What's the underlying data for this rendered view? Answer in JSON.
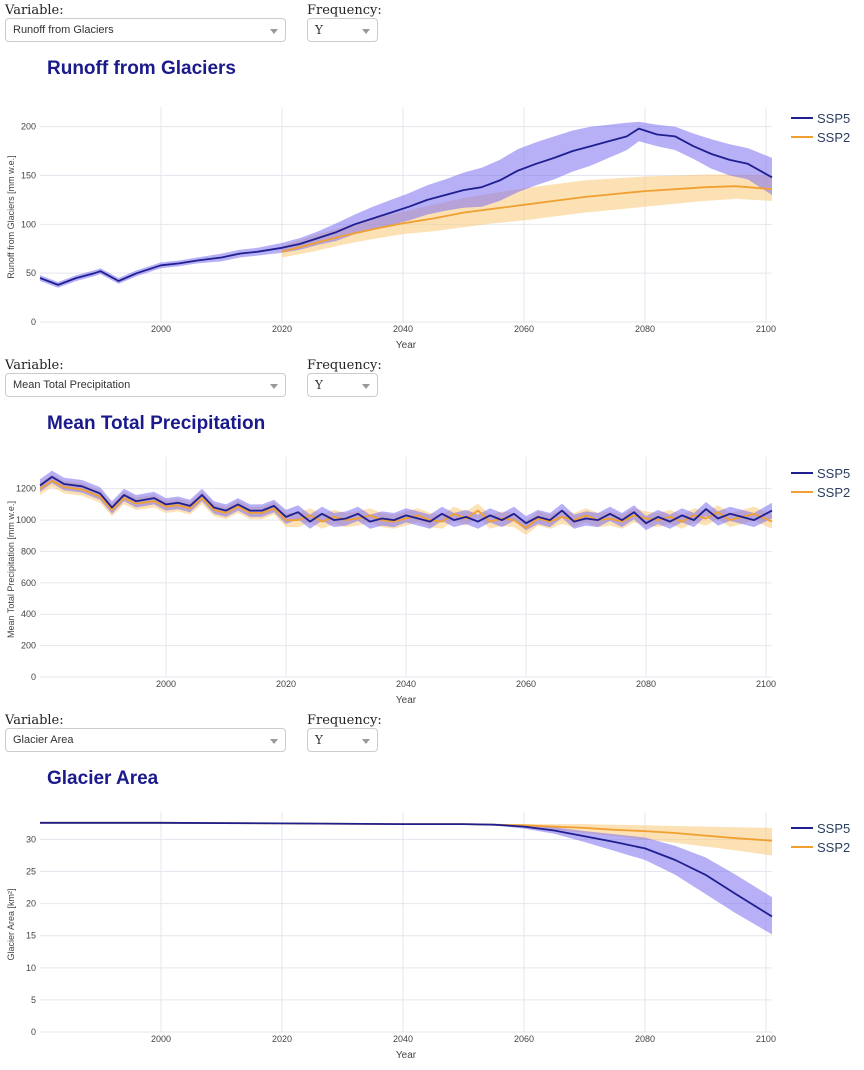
{
  "panels": [
    {
      "variable_label": "Variable:",
      "variable_value": "Runoff from Glaciers",
      "frequency_label": "Frequency:",
      "frequency_value": "Y",
      "title": "Runoff from Glaciers"
    },
    {
      "variable_label": "Variable:",
      "variable_value": "Mean Total Precipitation",
      "frequency_label": "Frequency:",
      "frequency_value": "Y",
      "title": "Mean Total Precipitation"
    },
    {
      "variable_label": "Variable:",
      "variable_value": "Glacier Area",
      "frequency_label": "Frequency:",
      "frequency_value": "Y",
      "title": "Glacier Area"
    }
  ],
  "colors": {
    "ssp5_line": "#1f1f8f",
    "ssp5_band": "#7b6ff0",
    "ssp2_line": "#f0a030",
    "ssp2_band": "#f9c878",
    "title": "#1a1a8c",
    "grid": "#e4e7ee"
  },
  "chart_data": [
    {
      "type": "area",
      "title": "Runoff from Glaciers",
      "xlabel": "Year",
      "ylabel": "Runoff from Glaciers [mm w.e.]",
      "xlim": [
        1980,
        2101
      ],
      "ylim": [
        0,
        215
      ],
      "xticks": [
        2000,
        2020,
        2040,
        2060,
        2080,
        2100
      ],
      "yticks": [
        0,
        50,
        100,
        150,
        200
      ],
      "legend": "top-right",
      "series": [
        {
          "name": "SSP5",
          "x": [
            1980,
            1983,
            1986,
            1989,
            1990,
            1993,
            1996,
            2000,
            2003,
            2006,
            2010,
            2013,
            2016,
            2020,
            2023,
            2026,
            2029,
            2032,
            2035,
            2038,
            2041,
            2044,
            2047,
            2050,
            2053,
            2056,
            2059,
            2062,
            2065,
            2068,
            2071,
            2074,
            2077,
            2079,
            2082,
            2085,
            2088,
            2091,
            2094,
            2097,
            2101
          ],
          "values": [
            45,
            38,
            45,
            50,
            52,
            42,
            50,
            58,
            60,
            63,
            66,
            70,
            72,
            76,
            80,
            86,
            92,
            100,
            106,
            112,
            118,
            125,
            130,
            135,
            138,
            145,
            155,
            162,
            168,
            175,
            180,
            185,
            190,
            198,
            192,
            190,
            180,
            172,
            166,
            162,
            148
          ],
          "band_upper": [
            48,
            41,
            48,
            53,
            55,
            45,
            53,
            61,
            63,
            66,
            70,
            74,
            76,
            81,
            86,
            93,
            101,
            110,
            118,
            125,
            132,
            140,
            146,
            153,
            158,
            166,
            177,
            184,
            190,
            196,
            200,
            202,
            204,
            205,
            202,
            200,
            193,
            187,
            182,
            178,
            168
          ],
          "band_lower": [
            42,
            35,
            42,
            47,
            49,
            39,
            47,
            55,
            57,
            60,
            62,
            66,
            68,
            71,
            74,
            79,
            83,
            90,
            94,
            99,
            104,
            110,
            114,
            117,
            118,
            124,
            133,
            140,
            146,
            154,
            160,
            168,
            176,
            185,
            180,
            176,
            167,
            157,
            150,
            146,
            130
          ]
        },
        {
          "name": "SSP2",
          "x": [
            2020,
            2025,
            2030,
            2035,
            2040,
            2045,
            2050,
            2055,
            2060,
            2065,
            2070,
            2075,
            2080,
            2085,
            2090,
            2095,
            2101
          ],
          "values": [
            72,
            80,
            88,
            95,
            101,
            106,
            112,
            116,
            120,
            124,
            128,
            131,
            134,
            136,
            138,
            139,
            136
          ],
          "band_upper": [
            78,
            88,
            97,
            106,
            113,
            120,
            127,
            132,
            137,
            141,
            145,
            147,
            149,
            150,
            151,
            151,
            150
          ],
          "band_lower": [
            66,
            72,
            79,
            85,
            90,
            93,
            97,
            101,
            104,
            108,
            112,
            115,
            118,
            121,
            124,
            126,
            124
          ]
        }
      ]
    },
    {
      "type": "area",
      "title": "Mean Total Precipitation",
      "xlabel": "Year",
      "ylabel": "Mean Total Precipitation [mm w.e.]",
      "xlim": [
        1979,
        2101
      ],
      "ylim": [
        0,
        1370
      ],
      "xticks": [
        2000,
        2020,
        2040,
        2060,
        2080,
        2100
      ],
      "yticks": [
        0,
        200,
        400,
        600,
        800,
        1000,
        1200
      ],
      "legend": "top-right",
      "series": [
        {
          "name": "SSP5",
          "x": [
            1979,
            1981,
            1983,
            1986,
            1989,
            1991,
            1993,
            1995,
            1998,
            2000,
            2002,
            2004,
            2006,
            2008,
            2010,
            2012,
            2014,
            2016,
            2018,
            2020,
            2022,
            2024,
            2026,
            2028,
            2030,
            2032,
            2034,
            2036,
            2038,
            2040,
            2042,
            2044,
            2046,
            2048,
            2050,
            2052,
            2054,
            2056,
            2058,
            2060,
            2062,
            2064,
            2066,
            2068,
            2070,
            2072,
            2074,
            2076,
            2078,
            2080,
            2082,
            2084,
            2086,
            2088,
            2090,
            2092,
            2094,
            2096,
            2098,
            2101
          ],
          "values": [
            1220,
            1275,
            1230,
            1215,
            1170,
            1080,
            1160,
            1120,
            1140,
            1100,
            1110,
            1090,
            1160,
            1080,
            1060,
            1100,
            1060,
            1060,
            1090,
            1020,
            1050,
            990,
            1040,
            1000,
            1010,
            1040,
            990,
            1010,
            1000,
            1030,
            1010,
            990,
            1040,
            1000,
            1020,
            990,
            1030,
            1000,
            1040,
            980,
            1020,
            1000,
            1060,
            990,
            1010,
            1000,
            1040,
            1000,
            1050,
            980,
            1020,
            990,
            1030,
            1000,
            1070,
            1010,
            1040,
            1020,
            1000,
            1060
          ],
          "band_upper": [
            1260,
            1315,
            1270,
            1255,
            1210,
            1120,
            1200,
            1160,
            1180,
            1140,
            1150,
            1130,
            1200,
            1120,
            1100,
            1140,
            1100,
            1100,
            1130,
            1065,
            1095,
            1035,
            1085,
            1045,
            1055,
            1085,
            1035,
            1055,
            1045,
            1075,
            1055,
            1035,
            1085,
            1045,
            1065,
            1035,
            1075,
            1045,
            1085,
            1025,
            1065,
            1045,
            1105,
            1035,
            1055,
            1045,
            1085,
            1045,
            1095,
            1025,
            1065,
            1035,
            1075,
            1045,
            1115,
            1055,
            1085,
            1065,
            1045,
            1110
          ],
          "band_lower": [
            1180,
            1235,
            1190,
            1175,
            1130,
            1040,
            1120,
            1080,
            1100,
            1060,
            1070,
            1050,
            1120,
            1040,
            1020,
            1060,
            1020,
            1020,
            1050,
            975,
            1005,
            945,
            995,
            955,
            965,
            995,
            945,
            965,
            955,
            985,
            965,
            945,
            995,
            955,
            975,
            945,
            985,
            955,
            995,
            935,
            975,
            955,
            1015,
            945,
            965,
            955,
            995,
            955,
            1005,
            935,
            975,
            945,
            985,
            955,
            1025,
            965,
            995,
            975,
            955,
            1010
          ]
        },
        {
          "name": "SSP2",
          "x": [
            1979,
            1981,
            1983,
            1986,
            1989,
            1991,
            1993,
            1995,
            1998,
            2000,
            2002,
            2004,
            2006,
            2008,
            2010,
            2012,
            2014,
            2016,
            2018,
            2020,
            2022,
            2024,
            2026,
            2028,
            2030,
            2032,
            2034,
            2036,
            2038,
            2040,
            2042,
            2044,
            2046,
            2048,
            2050,
            2052,
            2054,
            2056,
            2058,
            2060,
            2062,
            2064,
            2066,
            2068,
            2070,
            2072,
            2074,
            2076,
            2078,
            2080,
            2082,
            2084,
            2086,
            2088,
            2090,
            2092,
            2094,
            2096,
            2098,
            2101
          ],
          "values": [
            1200,
            1250,
            1210,
            1195,
            1150,
            1065,
            1140,
            1105,
            1120,
            1085,
            1095,
            1075,
            1140,
            1065,
            1045,
            1085,
            1045,
            1045,
            1075,
            1000,
            1000,
            1030,
            990,
            1020,
            1000,
            1010,
            1030,
            1000,
            990,
            1010,
            1030,
            1000,
            990,
            1040,
            1010,
            1060,
            990,
            1010,
            1000,
            950,
            1010,
            990,
            1020,
            1000,
            1030,
            1000,
            1010,
            990,
            1030,
            1010,
            1000,
            1020,
            990,
            1030,
            1010,
            1050,
            1000,
            1020,
            1040,
            990
          ],
          "band_upper": [
            1240,
            1290,
            1250,
            1235,
            1190,
            1105,
            1180,
            1145,
            1160,
            1125,
            1135,
            1115,
            1180,
            1105,
            1085,
            1125,
            1085,
            1085,
            1115,
            1045,
            1045,
            1075,
            1035,
            1065,
            1045,
            1055,
            1075,
            1045,
            1035,
            1055,
            1075,
            1045,
            1035,
            1085,
            1055,
            1105,
            1035,
            1055,
            1045,
            995,
            1055,
            1035,
            1065,
            1045,
            1075,
            1045,
            1055,
            1035,
            1075,
            1055,
            1045,
            1065,
            1035,
            1075,
            1055,
            1095,
            1045,
            1065,
            1085,
            1035
          ],
          "band_lower": [
            1160,
            1210,
            1170,
            1155,
            1110,
            1025,
            1100,
            1065,
            1080,
            1045,
            1055,
            1035,
            1100,
            1025,
            1005,
            1045,
            1005,
            1005,
            1035,
            955,
            955,
            985,
            945,
            975,
            955,
            965,
            985,
            955,
            945,
            965,
            985,
            955,
            945,
            995,
            965,
            1015,
            945,
            965,
            955,
            905,
            965,
            945,
            975,
            955,
            985,
            955,
            965,
            945,
            985,
            965,
            955,
            975,
            945,
            985,
            965,
            1005,
            955,
            975,
            995,
            945
          ]
        }
      ]
    },
    {
      "type": "area",
      "title": "Glacier Area",
      "xlabel": "Year",
      "ylabel": "Glacier Area [km²]",
      "xlim": [
        1980,
        2101
      ],
      "ylim": [
        0,
        33.5
      ],
      "xticks": [
        2000,
        2020,
        2040,
        2060,
        2080,
        2100
      ],
      "yticks": [
        0,
        5,
        10,
        15,
        20,
        25,
        30
      ],
      "legend": "top-right",
      "series": [
        {
          "name": "SSP5",
          "x": [
            1980,
            2000,
            2020,
            2040,
            2050,
            2055,
            2060,
            2065,
            2070,
            2075,
            2080,
            2085,
            2090,
            2095,
            2101
          ],
          "values": [
            32.6,
            32.6,
            32.5,
            32.4,
            32.4,
            32.3,
            32.0,
            31.4,
            30.5,
            29.6,
            28.6,
            26.8,
            24.5,
            21.5,
            18.0
          ],
          "band_upper": [
            32.6,
            32.6,
            32.5,
            32.4,
            32.4,
            32.4,
            32.3,
            31.9,
            31.3,
            30.8,
            30.3,
            29.0,
            27.2,
            24.5,
            21.0
          ],
          "band_lower": [
            32.6,
            32.6,
            32.5,
            32.4,
            32.4,
            32.2,
            31.7,
            30.9,
            29.6,
            28.2,
            26.8,
            24.5,
            21.5,
            18.5,
            15.2
          ]
        },
        {
          "name": "SSP2",
          "x": [
            1980,
            2000,
            2020,
            2040,
            2050,
            2055,
            2060,
            2065,
            2070,
            2075,
            2080,
            2085,
            2090,
            2095,
            2101
          ],
          "values": [
            32.6,
            32.6,
            32.5,
            32.4,
            32.4,
            32.3,
            32.2,
            32.0,
            31.8,
            31.5,
            31.3,
            31.0,
            30.6,
            30.2,
            29.8
          ],
          "band_upper": [
            32.6,
            32.6,
            32.5,
            32.4,
            32.4,
            32.4,
            32.4,
            32.4,
            32.4,
            32.3,
            32.2,
            32.1,
            32.0,
            31.9,
            31.8
          ],
          "band_lower": [
            32.6,
            32.6,
            32.5,
            32.4,
            32.4,
            32.2,
            31.9,
            31.5,
            31.0,
            30.5,
            30.0,
            29.5,
            28.9,
            28.3,
            27.5
          ]
        }
      ]
    }
  ]
}
